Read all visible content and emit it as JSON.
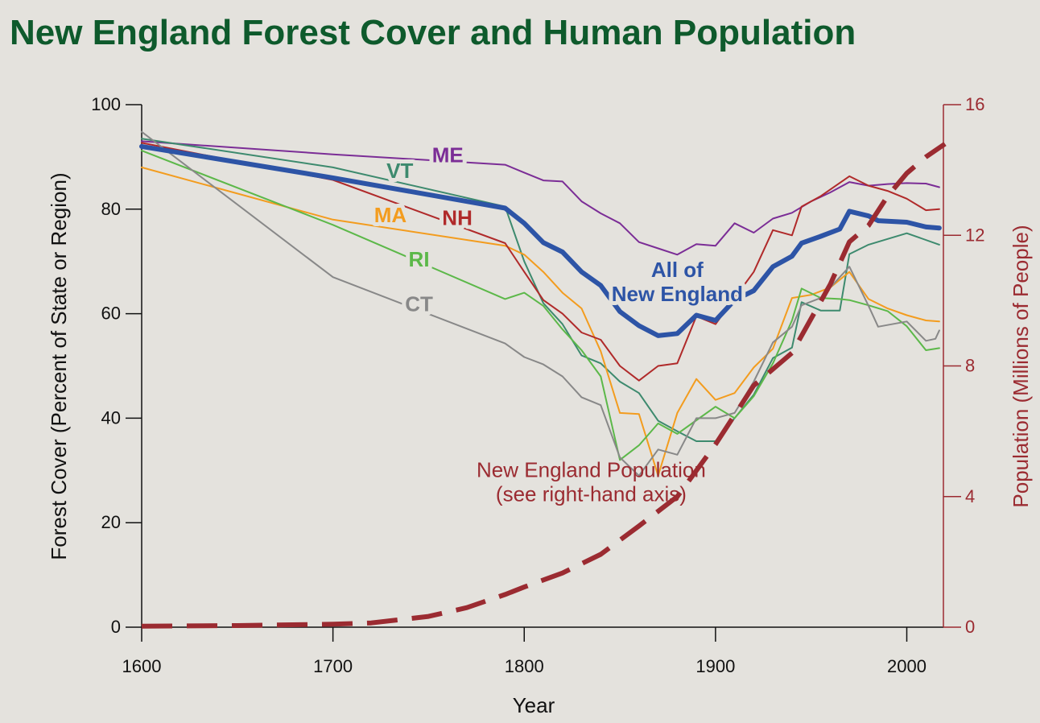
{
  "page": {
    "title": "New England Forest Cover and Human Population",
    "title_color": "#0e5a2c"
  },
  "chart_data": {
    "type": "line",
    "title": "New England Forest Cover and Human Population",
    "xlabel": "Year",
    "ylabel": "Forest Cover (Percent of State or Region)",
    "y2label": "Population (Millions of People)",
    "xlim": [
      1600,
      2020
    ],
    "ylim": [
      0,
      100
    ],
    "y2lim": [
      0,
      16
    ],
    "x_ticks": [
      "1600",
      "1700",
      "1800",
      "1900",
      "2000"
    ],
    "y_ticks": [
      "0",
      "20",
      "40",
      "60",
      "80",
      "100"
    ],
    "y2_ticks": [
      "0",
      "4",
      "8",
      "12",
      "16"
    ],
    "grid": false,
    "series": [
      {
        "name": "ME",
        "axis": "left",
        "color": "#7b2d96",
        "width": 2,
        "label_pos": [
          1760,
          89
        ],
        "points": [
          [
            1600,
            93
          ],
          [
            1700,
            90.5
          ],
          [
            1790,
            88.5
          ],
          [
            1800,
            87
          ],
          [
            1810,
            85.5
          ],
          [
            1820,
            85.3
          ],
          [
            1830,
            81.5
          ],
          [
            1840,
            79.2
          ],
          [
            1850,
            77.3
          ],
          [
            1860,
            73.7
          ],
          [
            1870,
            72.5
          ],
          [
            1880,
            71.3
          ],
          [
            1890,
            73.3
          ],
          [
            1900,
            73
          ],
          [
            1910,
            77.3
          ],
          [
            1920,
            75.5
          ],
          [
            1930,
            78.2
          ],
          [
            1940,
            79.3
          ],
          [
            1950,
            81.5
          ],
          [
            1960,
            83.2
          ],
          [
            1970,
            85.2
          ],
          [
            1980,
            84.5
          ],
          [
            1990,
            84.8
          ],
          [
            2000,
            85
          ],
          [
            2010,
            84.9
          ],
          [
            2017,
            84.2
          ]
        ]
      },
      {
        "name": "VT",
        "axis": "left",
        "color": "#3d8a6e",
        "width": 2,
        "label_pos": [
          1735,
          86
        ],
        "points": [
          [
            1600,
            93.5
          ],
          [
            1700,
            88
          ],
          [
            1790,
            80.5
          ],
          [
            1800,
            70
          ],
          [
            1810,
            62
          ],
          [
            1820,
            58
          ],
          [
            1830,
            52
          ],
          [
            1840,
            50.5
          ],
          [
            1850,
            47
          ],
          [
            1860,
            44.8
          ],
          [
            1870,
            39.5
          ],
          [
            1880,
            37.5
          ],
          [
            1890,
            35.6
          ],
          [
            1900,
            35.6
          ],
          [
            1910,
            40
          ],
          [
            1920,
            44.5
          ],
          [
            1930,
            51.5
          ],
          [
            1940,
            53.5
          ],
          [
            1945,
            62.2
          ],
          [
            1955,
            60.6
          ],
          [
            1965,
            60.6
          ],
          [
            1970,
            71.4
          ],
          [
            1980,
            73.2
          ],
          [
            1990,
            74.3
          ],
          [
            2000,
            75.4
          ],
          [
            2017,
            73.2
          ]
        ]
      },
      {
        "name": "MA",
        "axis": "left",
        "color": "#f39c1e",
        "width": 2,
        "label_pos": [
          1730,
          77.5
        ],
        "points": [
          [
            1600,
            88
          ],
          [
            1700,
            78
          ],
          [
            1790,
            73
          ],
          [
            1800,
            71.3
          ],
          [
            1810,
            68
          ],
          [
            1820,
            64
          ],
          [
            1830,
            61
          ],
          [
            1840,
            52.8
          ],
          [
            1850,
            41
          ],
          [
            1860,
            40.8
          ],
          [
            1870,
            29
          ],
          [
            1880,
            41
          ],
          [
            1890,
            47.5
          ],
          [
            1900,
            43.5
          ],
          [
            1910,
            44.8
          ],
          [
            1920,
            49.7
          ],
          [
            1930,
            53.3
          ],
          [
            1940,
            63
          ],
          [
            1950,
            63.6
          ],
          [
            1960,
            65
          ],
          [
            1970,
            68
          ],
          [
            1980,
            62.8
          ],
          [
            1990,
            61
          ],
          [
            2000,
            59.7
          ],
          [
            2010,
            58.7
          ],
          [
            2017,
            58.5
          ]
        ]
      },
      {
        "name": "NH",
        "axis": "left",
        "color": "#b02a2a",
        "width": 2,
        "label_pos": [
          1765,
          77
        ],
        "points": [
          [
            1600,
            92.7
          ],
          [
            1700,
            85.6
          ],
          [
            1790,
            73.5
          ],
          [
            1800,
            68
          ],
          [
            1810,
            62.6
          ],
          [
            1820,
            60
          ],
          [
            1830,
            56.4
          ],
          [
            1840,
            55
          ],
          [
            1850,
            50
          ],
          [
            1860,
            47.2
          ],
          [
            1870,
            50
          ],
          [
            1880,
            50.5
          ],
          [
            1890,
            59.5
          ],
          [
            1900,
            58
          ],
          [
            1910,
            63
          ],
          [
            1920,
            68
          ],
          [
            1930,
            76
          ],
          [
            1940,
            75
          ],
          [
            1945,
            80.5
          ],
          [
            1955,
            82.5
          ],
          [
            1970,
            86.3
          ],
          [
            1980,
            84.5
          ],
          [
            1990,
            83.5
          ],
          [
            2000,
            82
          ],
          [
            2010,
            79.8
          ],
          [
            2017,
            80
          ]
        ]
      },
      {
        "name": "RI",
        "axis": "left",
        "color": "#5cb849",
        "width": 2,
        "label_pos": [
          1745,
          69
        ],
        "points": [
          [
            1600,
            91.2
          ],
          [
            1700,
            77
          ],
          [
            1790,
            62.8
          ],
          [
            1800,
            64
          ],
          [
            1810,
            61.5
          ],
          [
            1820,
            57
          ],
          [
            1830,
            53
          ],
          [
            1840,
            48
          ],
          [
            1850,
            32
          ],
          [
            1860,
            34.8
          ],
          [
            1870,
            39
          ],
          [
            1880,
            37
          ],
          [
            1890,
            39.6
          ],
          [
            1900,
            42.2
          ],
          [
            1910,
            40
          ],
          [
            1920,
            44.2
          ],
          [
            1930,
            50.5
          ],
          [
            1940,
            58.7
          ],
          [
            1945,
            64.8
          ],
          [
            1955,
            63
          ],
          [
            1965,
            62.8
          ],
          [
            1970,
            62.6
          ],
          [
            1980,
            61.6
          ],
          [
            1990,
            60.5
          ],
          [
            2000,
            57.6
          ],
          [
            2010,
            53
          ],
          [
            2017,
            53.4
          ]
        ]
      },
      {
        "name": "CT",
        "axis": "left",
        "color": "#888888",
        "width": 2,
        "label_pos": [
          1745,
          60.5
        ],
        "points": [
          [
            1600,
            94.8
          ],
          [
            1700,
            67
          ],
          [
            1790,
            54.3
          ],
          [
            1800,
            51.7
          ],
          [
            1810,
            50.3
          ],
          [
            1820,
            48
          ],
          [
            1830,
            44
          ],
          [
            1840,
            42.5
          ],
          [
            1850,
            32.5
          ],
          [
            1860,
            29
          ],
          [
            1870,
            34
          ],
          [
            1880,
            33
          ],
          [
            1890,
            40
          ],
          [
            1900,
            40
          ],
          [
            1910,
            41
          ],
          [
            1920,
            47
          ],
          [
            1930,
            54.5
          ],
          [
            1940,
            57.5
          ],
          [
            1945,
            61.6
          ],
          [
            1955,
            63
          ],
          [
            1970,
            69
          ],
          [
            1980,
            61.5
          ],
          [
            1985,
            57.5
          ],
          [
            2000,
            58.5
          ],
          [
            2010,
            54.8
          ],
          [
            2015,
            55.2
          ],
          [
            2017,
            56.8
          ]
        ]
      },
      {
        "name": "All of\nNew England",
        "axis": "left",
        "color": "#2d54a6",
        "width": 6,
        "label_pos": [
          1880,
          67
        ],
        "points": [
          [
            1600,
            92
          ],
          [
            1700,
            86
          ],
          [
            1790,
            80.2
          ],
          [
            1800,
            77.3
          ],
          [
            1810,
            73.6
          ],
          [
            1820,
            71.8
          ],
          [
            1830,
            68
          ],
          [
            1840,
            65.4
          ],
          [
            1850,
            60.4
          ],
          [
            1860,
            57.7
          ],
          [
            1870,
            55.8
          ],
          [
            1880,
            56.2
          ],
          [
            1890,
            59.7
          ],
          [
            1900,
            58.7
          ],
          [
            1910,
            62.6
          ],
          [
            1920,
            64.4
          ],
          [
            1930,
            69
          ],
          [
            1940,
            71
          ],
          [
            1945,
            73.5
          ],
          [
            1955,
            74.8
          ],
          [
            1965,
            76.2
          ],
          [
            1970,
            79.6
          ],
          [
            1980,
            78.7
          ],
          [
            1985,
            77.8
          ],
          [
            2000,
            77.5
          ],
          [
            2010,
            76.6
          ],
          [
            2017,
            76.4
          ]
        ]
      },
      {
        "name": "New England Population\n(see right-hand axis)",
        "axis": "right",
        "color": "#9b2b31",
        "width": 6,
        "dashed": true,
        "label_pos": [
          1835,
          4.6
        ],
        "points": [
          [
            1600,
            0.03
          ],
          [
            1650,
            0.05
          ],
          [
            1700,
            0.09
          ],
          [
            1720,
            0.13
          ],
          [
            1750,
            0.33
          ],
          [
            1770,
            0.6
          ],
          [
            1790,
            1.0
          ],
          [
            1800,
            1.23
          ],
          [
            1820,
            1.66
          ],
          [
            1840,
            2.23
          ],
          [
            1860,
            3.1
          ],
          [
            1880,
            4.0
          ],
          [
            1900,
            5.6
          ],
          [
            1920,
            7.4
          ],
          [
            1940,
            8.4
          ],
          [
            1960,
            10.5
          ],
          [
            1970,
            11.8
          ],
          [
            1980,
            12.3
          ],
          [
            1990,
            13.2
          ],
          [
            2000,
            13.9
          ],
          [
            2010,
            14.4
          ],
          [
            2020,
            14.8
          ]
        ]
      }
    ]
  }
}
